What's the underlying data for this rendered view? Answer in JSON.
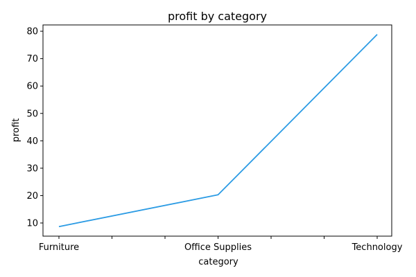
{
  "chart_data": {
    "type": "line",
    "title": "profit by category",
    "xlabel": "category",
    "ylabel": "profit",
    "categories": [
      "Furniture",
      "Office Supplies",
      "Technology"
    ],
    "series": [
      {
        "values": [
          8.7,
          20.3,
          78.8
        ]
      }
    ],
    "line_color": "#2b9be4",
    "ylim": [
      5.2,
      82.3
    ],
    "yticks": [
      10,
      20,
      30,
      40,
      50,
      60,
      70,
      80
    ],
    "grid": false,
    "legend": "none"
  }
}
